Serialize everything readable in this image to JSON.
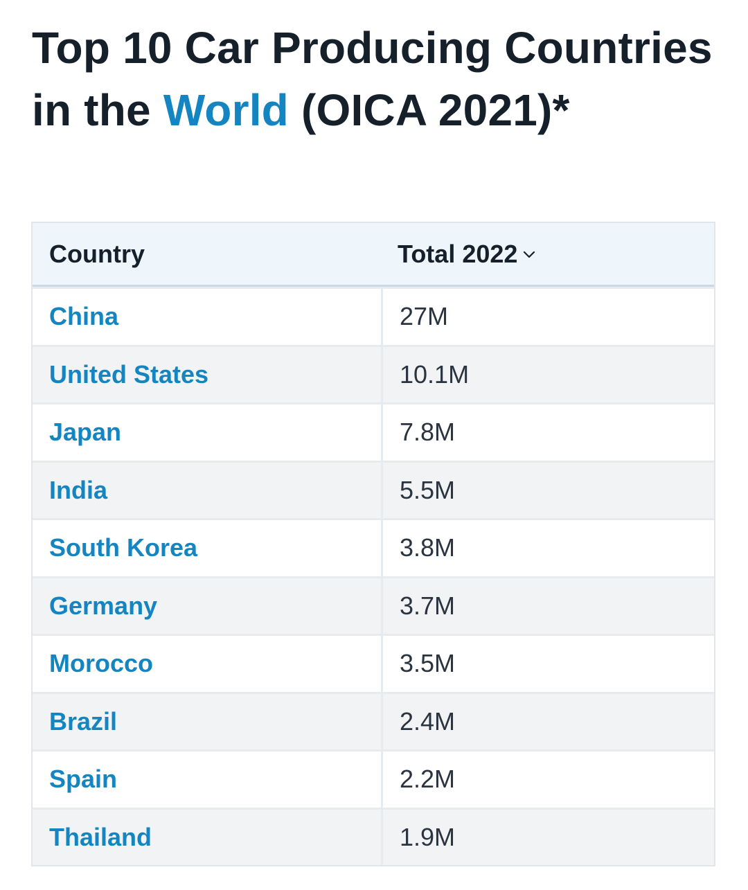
{
  "title": {
    "part1": "Top 10 Car Producing Countries in the ",
    "link": "World",
    "part2": " (OICA 2021)*",
    "link_color": "#1585c2"
  },
  "table": {
    "headers": {
      "country": "Country",
      "total": "Total 2022",
      "sort_icon": "chevron-down-icon"
    },
    "rows": [
      {
        "country": "China",
        "total": "27M"
      },
      {
        "country": "United States",
        "total": "10.1M"
      },
      {
        "country": "Japan",
        "total": "7.8M"
      },
      {
        "country": "India",
        "total": "5.5M"
      },
      {
        "country": "South Korea",
        "total": "3.8M"
      },
      {
        "country": "Germany",
        "total": "3.7M"
      },
      {
        "country": "Morocco",
        "total": "3.5M"
      },
      {
        "country": "Brazil",
        "total": "2.4M"
      },
      {
        "country": "Spain",
        "total": "2.2M"
      },
      {
        "country": "Thailand",
        "total": "1.9M"
      }
    ]
  }
}
